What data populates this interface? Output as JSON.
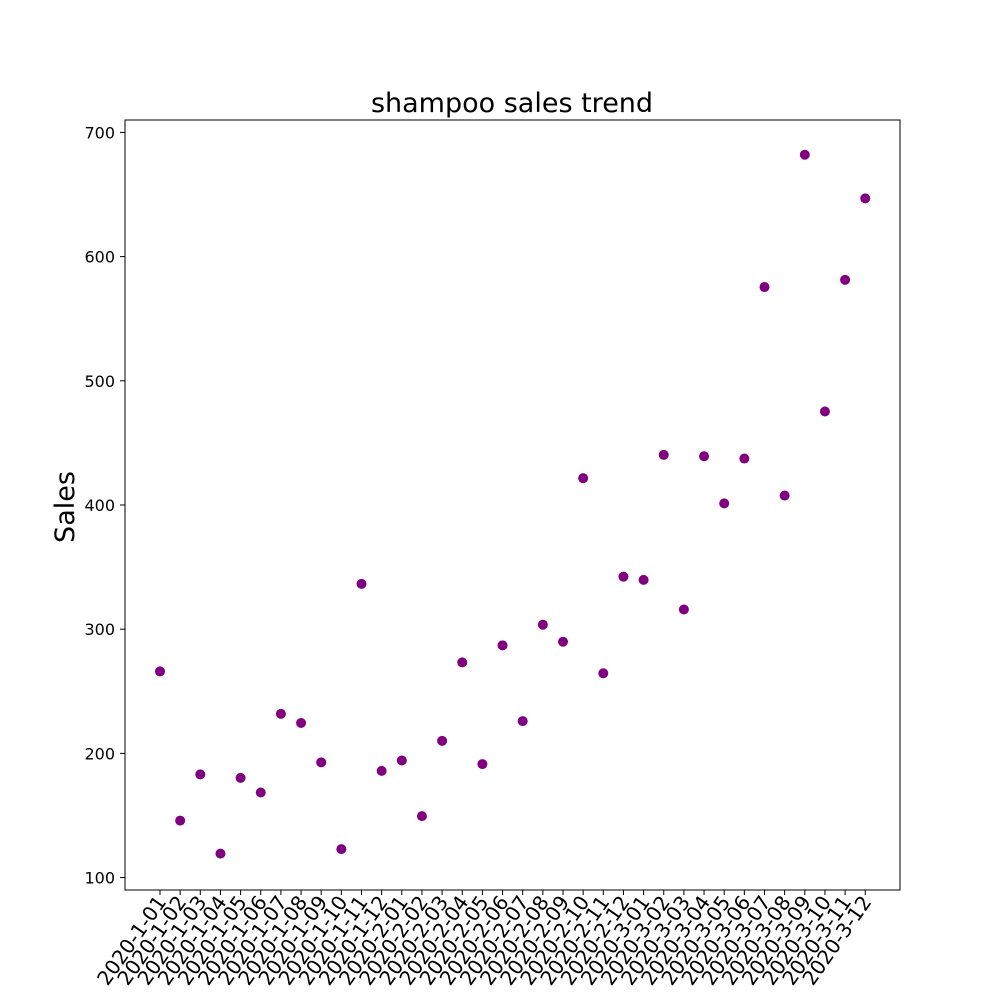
{
  "chart_data": {
    "type": "scatter",
    "title": "shampoo sales trend",
    "xlabel": "",
    "ylabel": "Sales",
    "ylim": [
      90,
      710
    ],
    "yticks": [
      100,
      200,
      300,
      400,
      500,
      600,
      700
    ],
    "grid": false,
    "marker_color": "#800080",
    "x": [
      "2020-1-01",
      "2020-1-02",
      "2020-1-03",
      "2020-1-04",
      "2020-1-05",
      "2020-1-06",
      "2020-1-07",
      "2020-1-08",
      "2020-1-09",
      "2020-1-10",
      "2020-1-11",
      "2020-1-12",
      "2020-2-01",
      "2020-2-02",
      "2020-2-03",
      "2020-2-04",
      "2020-2-05",
      "2020-2-06",
      "2020-2-07",
      "2020-2-08",
      "2020-2-09",
      "2020-2-10",
      "2020-2-11",
      "2020-2-12",
      "2020-3-01",
      "2020-3-02",
      "2020-3-03",
      "2020-3-04",
      "2020-3-05",
      "2020-3-06",
      "2020-3-07",
      "2020-3-08",
      "2020-3-09",
      "2020-3-10",
      "2020-3-11",
      "2020-3-12"
    ],
    "values": [
      266.0,
      145.9,
      183.1,
      119.3,
      180.3,
      168.5,
      231.8,
      224.5,
      192.8,
      122.9,
      336.5,
      185.9,
      194.3,
      149.5,
      210.1,
      273.3,
      191.4,
      287.0,
      226.0,
      303.6,
      289.9,
      421.6,
      264.5,
      342.3,
      339.7,
      440.4,
      315.9,
      439.3,
      401.3,
      437.4,
      575.5,
      407.6,
      682.0,
      475.3,
      581.3,
      646.9
    ]
  }
}
